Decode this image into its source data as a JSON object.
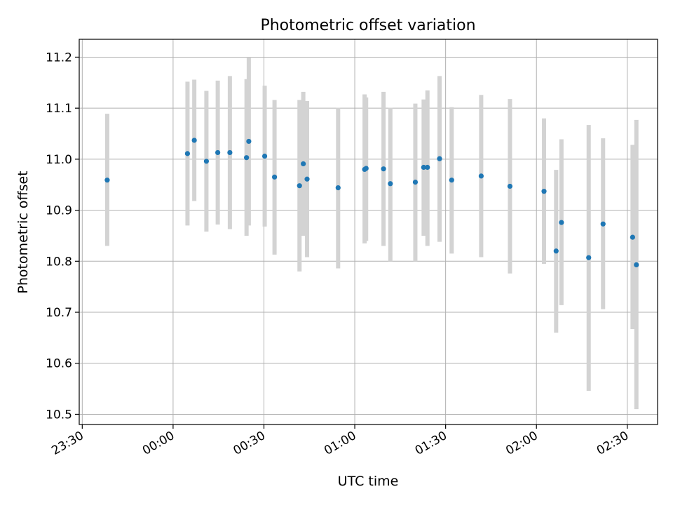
{
  "colors": {
    "point": "#1f77b4",
    "errorbar": "#d3d3d3",
    "grid": "#b0b0b0",
    "axis": "#000000"
  },
  "chart_data": {
    "type": "scatter",
    "title": "Photometric offset variation",
    "xlabel": "UTC time",
    "ylabel": "Photometric offset",
    "x_unit": "UTC time",
    "xlim": [
      "23:29",
      "02:40"
    ],
    "ylim": [
      10.48,
      11.235
    ],
    "grid": true,
    "legend": null,
    "x_ticks": [
      "23:30",
      "00:00",
      "00:30",
      "01:00",
      "01:30",
      "02:00",
      "02:30"
    ],
    "y_ticks": [
      "10.5",
      "10.6",
      "10.7",
      "10.8",
      "10.9",
      "11.0",
      "11.1",
      "11.2"
    ],
    "series": [
      {
        "points": [
          {
            "x": "23:38:15",
            "y": 10.959,
            "ylow": 10.83,
            "yhigh": 11.089
          },
          {
            "x": "00:04:45",
            "y": 11.011,
            "ylow": 10.87,
            "yhigh": 11.152
          },
          {
            "x": "00:07:00",
            "y": 11.037,
            "ylow": 10.918,
            "yhigh": 11.156
          },
          {
            "x": "00:11:00",
            "y": 10.996,
            "ylow": 10.858,
            "yhigh": 11.134
          },
          {
            "x": "00:14:45",
            "y": 11.013,
            "ylow": 10.872,
            "yhigh": 11.154
          },
          {
            "x": "00:18:45",
            "y": 11.013,
            "ylow": 10.863,
            "yhigh": 11.163
          },
          {
            "x": "00:24:15",
            "y": 11.003,
            "ylow": 10.85,
            "yhigh": 11.157
          },
          {
            "x": "00:25:00",
            "y": 11.035,
            "ylow": 10.87,
            "yhigh": 11.2
          },
          {
            "x": "00:30:15",
            "y": 11.006,
            "ylow": 10.868,
            "yhigh": 11.144
          },
          {
            "x": "00:33:30",
            "y": 10.965,
            "ylow": 10.813,
            "yhigh": 11.116
          },
          {
            "x": "00:41:45",
            "y": 10.948,
            "ylow": 10.78,
            "yhigh": 11.116
          },
          {
            "x": "00:43:00",
            "y": 10.991,
            "ylow": 10.85,
            "yhigh": 11.132
          },
          {
            "x": "00:44:15",
            "y": 10.961,
            "ylow": 10.808,
            "yhigh": 11.114
          },
          {
            "x": "00:54:30",
            "y": 10.944,
            "ylow": 10.786,
            "yhigh": 11.101
          },
          {
            "x": "01:03:15",
            "y": 10.98,
            "ylow": 10.835,
            "yhigh": 11.127
          },
          {
            "x": "01:03:45",
            "y": 10.982,
            "ylow": 10.84,
            "yhigh": 11.121
          },
          {
            "x": "01:09:30",
            "y": 10.981,
            "ylow": 10.83,
            "yhigh": 11.132
          },
          {
            "x": "01:11:45",
            "y": 10.952,
            "ylow": 10.8,
            "yhigh": 11.101
          },
          {
            "x": "01:20:00",
            "y": 10.955,
            "ylow": 10.8,
            "yhigh": 11.109
          },
          {
            "x": "01:22:45",
            "y": 10.984,
            "ylow": 10.85,
            "yhigh": 11.117
          },
          {
            "x": "01:24:00",
            "y": 10.984,
            "ylow": 10.83,
            "yhigh": 11.135
          },
          {
            "x": "01:28:00",
            "y": 11.001,
            "ylow": 10.838,
            "yhigh": 11.163
          },
          {
            "x": "01:32:00",
            "y": 10.959,
            "ylow": 10.815,
            "yhigh": 11.102
          },
          {
            "x": "01:41:45",
            "y": 10.967,
            "ylow": 10.808,
            "yhigh": 11.126
          },
          {
            "x": "01:51:15",
            "y": 10.947,
            "ylow": 10.776,
            "yhigh": 11.118
          },
          {
            "x": "02:02:30",
            "y": 10.937,
            "ylow": 10.795,
            "yhigh": 11.08
          },
          {
            "x": "02:06:30",
            "y": 10.82,
            "ylow": 10.66,
            "yhigh": 10.979
          },
          {
            "x": "02:08:15",
            "y": 10.876,
            "ylow": 10.714,
            "yhigh": 11.039
          },
          {
            "x": "02:17:15",
            "y": 10.807,
            "ylow": 10.546,
            "yhigh": 11.067
          },
          {
            "x": "02:22:00",
            "y": 10.873,
            "ylow": 10.706,
            "yhigh": 11.041
          },
          {
            "x": "02:31:45",
            "y": 10.847,
            "ylow": 10.667,
            "yhigh": 11.028
          },
          {
            "x": "02:33:00",
            "y": 10.793,
            "ylow": 10.51,
            "yhigh": 11.077
          }
        ]
      }
    ]
  }
}
